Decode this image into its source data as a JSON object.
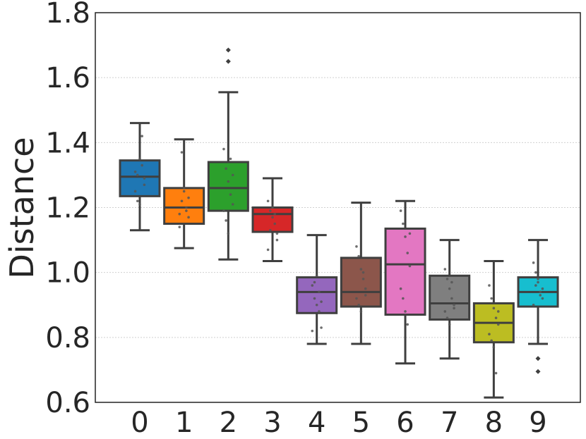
{
  "chart_data": {
    "type": "box",
    "title": "",
    "xlabel": "",
    "ylabel": "Distance",
    "ylim": [
      0.6,
      1.8
    ],
    "yticks": [
      "0.6",
      "0.8",
      "1.0",
      "1.2",
      "1.4",
      "1.6",
      "1.8"
    ],
    "grid": true,
    "categories": [
      "0",
      "1",
      "2",
      "3",
      "4",
      "5",
      "6",
      "7",
      "8",
      "9"
    ],
    "colors": [
      "#1f77b4",
      "#ff7f0e",
      "#2ca02c",
      "#d62728",
      "#9467bd",
      "#8c564b",
      "#e377c2",
      "#7f7f7f",
      "#bcbd22",
      "#17becf"
    ],
    "boxes": [
      {
        "category": "0",
        "whisker_low": 1.13,
        "q1": 1.235,
        "median": 1.295,
        "q3": 1.345,
        "whisker_high": 1.46,
        "outliers": []
      },
      {
        "category": "1",
        "whisker_low": 1.075,
        "q1": 1.15,
        "median": 1.2,
        "q3": 1.26,
        "whisker_high": 1.41,
        "outliers": []
      },
      {
        "category": "2",
        "whisker_low": 1.04,
        "q1": 1.19,
        "median": 1.26,
        "q3": 1.34,
        "whisker_high": 1.555,
        "outliers": [
          1.65,
          1.685
        ]
      },
      {
        "category": "3",
        "whisker_low": 1.035,
        "q1": 1.125,
        "median": 1.18,
        "q3": 1.2,
        "whisker_high": 1.29,
        "outliers": []
      },
      {
        "category": "4",
        "whisker_low": 0.78,
        "q1": 0.875,
        "median": 0.94,
        "q3": 0.985,
        "whisker_high": 1.115,
        "outliers": []
      },
      {
        "category": "5",
        "whisker_low": 0.78,
        "q1": 0.895,
        "median": 0.94,
        "q3": 1.045,
        "whisker_high": 1.215,
        "outliers": []
      },
      {
        "category": "6",
        "whisker_low": 0.72,
        "q1": 0.87,
        "median": 1.025,
        "q3": 1.135,
        "whisker_high": 1.22,
        "outliers": []
      },
      {
        "category": "7",
        "whisker_low": 0.735,
        "q1": 0.855,
        "median": 0.905,
        "q3": 0.99,
        "whisker_high": 1.1,
        "outliers": []
      },
      {
        "category": "8",
        "whisker_low": 0.615,
        "q1": 0.785,
        "median": 0.845,
        "q3": 0.905,
        "whisker_high": 1.035,
        "outliers": []
      },
      {
        "category": "9",
        "whisker_low": 0.78,
        "q1": 0.895,
        "median": 0.94,
        "q3": 0.985,
        "whisker_high": 1.1,
        "outliers": [
          0.735,
          0.695
        ]
      }
    ],
    "swarm_points": [
      [
        1.31,
        1.3,
        1.35,
        1.42,
        1.27,
        1.25,
        1.22,
        1.21,
        1.33,
        1.29
      ],
      [
        1.18,
        1.22,
        1.25,
        1.2,
        1.17,
        1.14,
        1.37,
        1.26,
        1.19,
        1.23
      ],
      [
        1.38,
        1.32,
        1.28,
        1.24,
        1.21,
        1.19,
        1.16,
        1.12,
        1.35,
        1.3
      ],
      [
        1.22,
        1.19,
        1.17,
        1.15,
        1.1,
        1.07,
        1.13,
        1.2,
        1.18,
        1.12
      ],
      [
        0.96,
        0.92,
        0.9,
        0.88,
        0.83,
        0.82,
        0.97,
        0.99,
        0.94,
        0.91
      ],
      [
        1.08,
        1.05,
        1.01,
        0.98,
        0.95,
        0.92,
        0.9,
        0.88,
        1.0,
        0.93
      ],
      [
        1.19,
        1.15,
        1.11,
        1.06,
        1.02,
        0.95,
        0.92,
        0.88,
        0.84,
        1.12
      ],
      [
        1.01,
        0.98,
        0.95,
        0.92,
        0.9,
        0.88,
        0.86,
        0.84,
        0.97,
        0.89
      ],
      [
        0.96,
        0.92,
        0.89,
        0.86,
        0.84,
        0.81,
        0.79,
        0.77,
        0.69,
        0.88
      ],
      [
        1.03,
        1.0,
        0.97,
        0.94,
        0.92,
        0.9,
        0.96,
        0.98,
        0.93,
        0.95
      ]
    ]
  }
}
